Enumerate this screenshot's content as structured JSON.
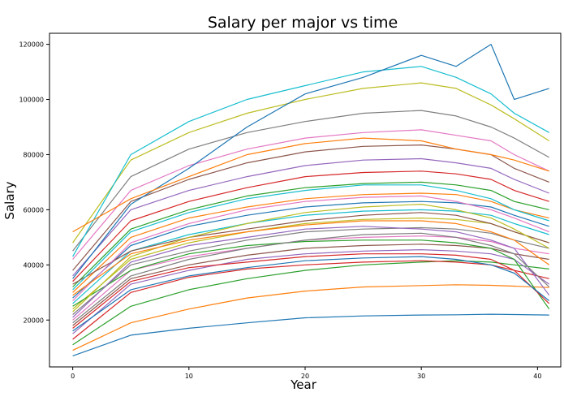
{
  "chart_data": {
    "type": "line",
    "title": "Salary per major vs time",
    "xlabel": "Year",
    "ylabel": "Salary",
    "xlim": [
      -2,
      42
    ],
    "ylim": [
      3000,
      124000
    ],
    "x_ticks": [
      0,
      10,
      20,
      30,
      40
    ],
    "x_tick_labels": [
      "0",
      "10",
      "20",
      "30",
      "40"
    ],
    "y_ticks": [
      20000,
      40000,
      60000,
      80000,
      100000,
      120000
    ],
    "y_tick_labels": [
      "20000",
      "40000",
      "60000",
      "80000",
      "100000",
      "120000"
    ],
    "grid": false,
    "legend": "none",
    "colors": [
      "#1f77b4",
      "#ff7f0e",
      "#2ca02c",
      "#d62728",
      "#9467bd",
      "#8c564b",
      "#e377c2",
      "#7f7f7f",
      "#bcbd22",
      "#17becf"
    ],
    "x": [
      0,
      5,
      10,
      15,
      20,
      25,
      30,
      33,
      36,
      38,
      41
    ],
    "series": [
      {
        "values": [
          7000,
          14500,
          17000,
          19000,
          20800,
          21500,
          21800,
          21900,
          22100,
          22000,
          21800
        ]
      },
      {
        "values": [
          9000,
          19000,
          24000,
          28000,
          30500,
          32000,
          32500,
          32800,
          32600,
          32300,
          31800
        ]
      },
      {
        "values": [
          11000,
          25000,
          31000,
          35000,
          38000,
          40000,
          41000,
          41500,
          41000,
          40000,
          38500
        ]
      },
      {
        "values": [
          13000,
          30000,
          35500,
          38500,
          40000,
          41000,
          41500,
          41000,
          40000,
          38000,
          35000
        ]
      },
      {
        "values": [
          15000,
          33000,
          38000,
          42000,
          44000,
          45000,
          45500,
          45000,
          44000,
          42000,
          33000
        ]
      },
      {
        "values": [
          18000,
          35000,
          40000,
          43500,
          46000,
          47000,
          47500,
          47000,
          46000,
          44000,
          42000
        ]
      },
      {
        "values": [
          20000,
          38000,
          43000,
          46000,
          49000,
          50000,
          50500,
          50000,
          48500,
          46000,
          44000
        ]
      },
      {
        "values": [
          22000,
          40000,
          45000,
          49000,
          52000,
          53000,
          53500,
          53000,
          51500,
          49000,
          46000
        ]
      },
      {
        "values": [
          24000,
          42000,
          48000,
          52000,
          55000,
          56500,
          57000,
          56500,
          55000,
          52000,
          48000
        ]
      },
      {
        "values": [
          26000,
          45000,
          51000,
          55000,
          58000,
          59500,
          60000,
          59500,
          58000,
          55000,
          51000
        ]
      },
      {
        "values": [
          28000,
          47000,
          54000,
          58000,
          61000,
          62500,
          63000,
          62500,
          61000,
          58000,
          54000
        ]
      },
      {
        "values": [
          30000,
          50000,
          57000,
          61000,
          64000,
          65500,
          66000,
          65500,
          63000,
          60000,
          57000
        ]
      },
      {
        "values": [
          32000,
          53000,
          60000,
          65000,
          68000,
          69500,
          70000,
          69000,
          67000,
          63000,
          60000
        ]
      },
      {
        "values": [
          34000,
          56000,
          63000,
          68000,
          72000,
          73500,
          74000,
          73000,
          71000,
          67000,
          63000
        ]
      },
      {
        "values": [
          36000,
          60000,
          67000,
          72000,
          76000,
          78000,
          78500,
          77000,
          75000,
          71000,
          66000
        ]
      },
      {
        "values": [
          38000,
          63000,
          71000,
          77000,
          81000,
          83000,
          83500,
          82000,
          80000,
          75000,
          70000
        ]
      },
      {
        "values": [
          42000,
          67000,
          76000,
          82000,
          86000,
          88000,
          89000,
          87000,
          85000,
          80000,
          74000
        ]
      },
      {
        "values": [
          45000,
          72000,
          82000,
          88000,
          92000,
          95000,
          96000,
          94000,
          90000,
          86000,
          79000
        ]
      },
      {
        "values": [
          48000,
          78000,
          88000,
          95000,
          100000,
          104000,
          106000,
          104000,
          98000,
          93000,
          85000
        ]
      },
      {
        "values": [
          43000,
          80000,
          92000,
          100000,
          105000,
          110000,
          112000,
          108000,
          102000,
          95000,
          88000
        ]
      },
      {
        "values": [
          35000,
          62000,
          75000,
          90000,
          102000,
          108000,
          116000,
          112000,
          120000,
          100000,
          104000
        ]
      },
      {
        "values": [
          52000,
          64000,
          72000,
          80000,
          84000,
          86000,
          85000,
          82000,
          80000,
          78000,
          74000
        ]
      },
      {
        "values": [
          25000,
          38000,
          44000,
          47000,
          48500,
          49000,
          49000,
          48000,
          46000,
          42000,
          24000
        ]
      },
      {
        "values": [
          17000,
          34000,
          39000,
          41000,
          43000,
          44000,
          44000,
          43500,
          42000,
          38000,
          26000
        ]
      },
      {
        "values": [
          21000,
          41000,
          47000,
          50000,
          53000,
          54000,
          53000,
          52000,
          49000,
          46000,
          29000
        ]
      },
      {
        "values": [
          33000,
          45000,
          50000,
          53000,
          56000,
          58000,
          59000,
          58000,
          55000,
          52000,
          48000
        ]
      },
      {
        "values": [
          27000,
          48000,
          55000,
          60000,
          63000,
          64500,
          65000,
          63000,
          60000,
          57000,
          52000
        ]
      },
      {
        "values": [
          19000,
          36000,
          42000,
          46000,
          49000,
          51000,
          51500,
          50000,
          47000,
          44000,
          32000
        ]
      },
      {
        "values": [
          23000,
          43000,
          50000,
          55000,
          59000,
          61000,
          62000,
          60000,
          57000,
          53000,
          46000
        ]
      },
      {
        "values": [
          31000,
          52000,
          59000,
          64000,
          67000,
          69000,
          69000,
          67000,
          64000,
          60000,
          56000
        ]
      },
      {
        "values": [
          16000,
          31000,
          36000,
          39000,
          41500,
          42500,
          43000,
          42000,
          40000,
          37000,
          27000
        ]
      },
      {
        "values": [
          29000,
          44000,
          49000,
          52000,
          54500,
          56000,
          56000,
          55000,
          52000,
          49000,
          40000
        ]
      }
    ]
  }
}
